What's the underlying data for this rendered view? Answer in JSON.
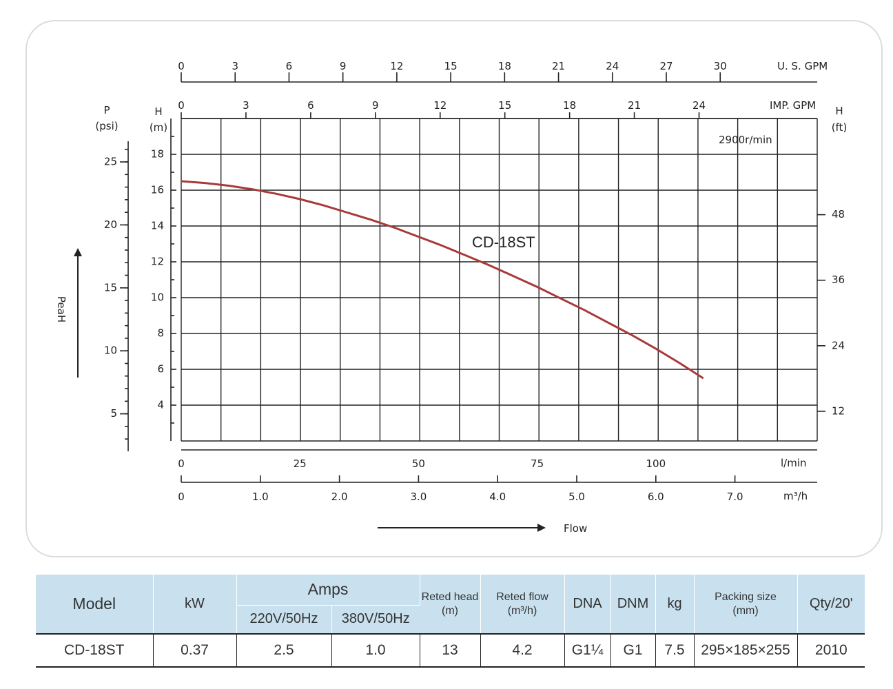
{
  "chart_data": {
    "type": "line",
    "series": [
      {
        "name": "CD-18ST",
        "x": [
          0,
          5,
          10,
          15,
          20,
          25,
          30,
          35,
          40,
          45,
          50,
          55,
          60,
          65,
          70,
          75,
          80,
          85,
          90,
          95,
          100,
          105,
          110
        ],
        "y": [
          16.5,
          16.4,
          16.25,
          16.05,
          15.8,
          15.5,
          15.15,
          14.75,
          14.35,
          13.9,
          13.4,
          12.9,
          12.35,
          11.8,
          11.2,
          10.6,
          9.95,
          9.3,
          8.6,
          7.9,
          7.15,
          6.35,
          5.5
        ]
      }
    ],
    "speed_label": "2900r/min",
    "model_label": "CD-18ST",
    "x_axis_lmin": {
      "unit": "l/min",
      "ticks": [
        "0",
        "25",
        "50",
        "75",
        "100"
      ],
      "range": [
        0,
        134
      ]
    },
    "x_axis_m3h": {
      "unit": "m³/h",
      "ticks": [
        "0",
        "1.0",
        "2.0",
        "3.0",
        "4.0",
        "5.0",
        "6.0",
        "7.0"
      ]
    },
    "x_axis_usgpm": {
      "unit": "U. S. GPM",
      "ticks": [
        "0",
        "3",
        "6",
        "9",
        "12",
        "15",
        "18",
        "21",
        "24",
        "27",
        "30"
      ]
    },
    "x_axis_impgpm": {
      "unit": "IMP. GPM",
      "ticks": [
        "0",
        "3",
        "6",
        "9",
        "12",
        "15",
        "18",
        "21",
        "24"
      ]
    },
    "y_axis_m": {
      "label_letter": "H",
      "unit": "(m)",
      "ticks": [
        "4",
        "6",
        "8",
        "10",
        "12",
        "14",
        "16",
        "18"
      ],
      "range": [
        2,
        20
      ]
    },
    "y_axis_psi": {
      "label_letter": "P",
      "unit": "(psi)",
      "ticks": [
        "5",
        "10",
        "15",
        "20",
        "25"
      ]
    },
    "y_axis_ft": {
      "label_letter": "H",
      "unit": "(ft)",
      "ticks": [
        "12",
        "24",
        "36",
        "48"
      ]
    },
    "head_arrow_label": "PeaH",
    "flow_arrow_label": "Flow",
    "grid": true
  },
  "table": {
    "headers": {
      "model": "Model",
      "kw": "kW",
      "amps": "Amps",
      "amps_220": "220V/50Hz",
      "amps_380": "380V/50Hz",
      "rated_head": "Reted head",
      "rated_head_unit": "(m)",
      "rated_flow": "Reted flow",
      "rated_flow_unit": "(m³/h)",
      "dna": "DNA",
      "dnm": "DNM",
      "kg": "kg",
      "packing": "Packing size",
      "packing_unit": "(mm)",
      "qty": "Qty/20'"
    },
    "row": {
      "model": "CD-18ST",
      "kw": "0.37",
      "amps_220": "2.5",
      "amps_380": "1.0",
      "rated_head": "13",
      "rated_flow": "4.2",
      "dna": "G1¼",
      "dnm": "G1",
      "kg": "7.5",
      "packing": "295×185×255",
      "qty": "2010"
    }
  }
}
